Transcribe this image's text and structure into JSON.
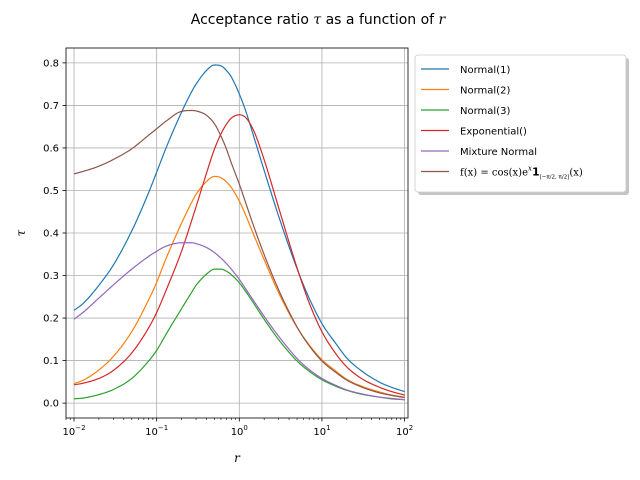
{
  "chart_data": {
    "type": "line",
    "title": "Acceptance ratio τ as a function of r",
    "title_parts": {
      "text": "Acceptance ratio ",
      "tau": "τ",
      "middle": " as a function of ",
      "r": "r"
    },
    "xlabel": "r",
    "ylabel": "τ",
    "xscale": "log",
    "xlim": [
      0.008,
      110
    ],
    "ylim": [
      -0.035,
      0.835
    ],
    "grid": true,
    "legend_position": "outside-top-right",
    "x_ticks": [
      {
        "value": 0.01,
        "base": "10",
        "exp": "−2"
      },
      {
        "value": 0.1,
        "base": "10",
        "exp": "−1"
      },
      {
        "value": 1,
        "base": "10",
        "exp": "0"
      },
      {
        "value": 10,
        "base": "10",
        "exp": "1"
      },
      {
        "value": 100,
        "base": "10",
        "exp": "2"
      }
    ],
    "y_ticks": [
      "0.0",
      "0.1",
      "0.2",
      "0.3",
      "0.4",
      "0.5",
      "0.6",
      "0.7",
      "0.8"
    ],
    "x": [
      0.01,
      0.013,
      0.02,
      0.03,
      0.05,
      0.08,
      0.1,
      0.13,
      0.2,
      0.27,
      0.3,
      0.4,
      0.5,
      0.6,
      0.7,
      0.8,
      1.0,
      1.2,
      1.5,
      2,
      3,
      5,
      7,
      10,
      15,
      20,
      30,
      50,
      70,
      100
    ],
    "series": [
      {
        "name": "Normal(1)",
        "color": "#1f77b4",
        "values": [
          0.218,
          0.235,
          0.277,
          0.325,
          0.405,
          0.495,
          0.543,
          0.6,
          0.684,
          0.735,
          0.75,
          0.782,
          0.795,
          0.793,
          0.782,
          0.767,
          0.727,
          0.686,
          0.626,
          0.547,
          0.439,
          0.316,
          0.247,
          0.187,
          0.138,
          0.106,
          0.076,
          0.049,
          0.037,
          0.027
        ]
      },
      {
        "name": "Normal(2)",
        "color": "#ff7f0e",
        "values": [
          0.046,
          0.054,
          0.078,
          0.11,
          0.168,
          0.243,
          0.284,
          0.34,
          0.423,
          0.475,
          0.491,
          0.521,
          0.533,
          0.53,
          0.52,
          0.507,
          0.475,
          0.441,
          0.395,
          0.337,
          0.259,
          0.178,
          0.137,
          0.102,
          0.074,
          0.056,
          0.04,
          0.026,
          0.019,
          0.014
        ]
      },
      {
        "name": "Normal(3)",
        "color": "#2ca02c",
        "values": [
          0.01,
          0.012,
          0.02,
          0.032,
          0.058,
          0.099,
          0.124,
          0.162,
          0.222,
          0.263,
          0.277,
          0.303,
          0.315,
          0.315,
          0.31,
          0.302,
          0.283,
          0.262,
          0.234,
          0.197,
          0.149,
          0.099,
          0.075,
          0.055,
          0.039,
          0.03,
          0.021,
          0.014,
          0.01,
          0.008
        ]
      },
      {
        "name": "Exponential()",
        "color": "#d62728",
        "values": [
          0.043,
          0.047,
          0.058,
          0.077,
          0.118,
          0.177,
          0.213,
          0.265,
          0.357,
          0.434,
          0.462,
          0.54,
          0.597,
          0.633,
          0.656,
          0.67,
          0.678,
          0.671,
          0.64,
          0.572,
          0.459,
          0.318,
          0.236,
          0.168,
          0.114,
          0.085,
          0.058,
          0.037,
          0.027,
          0.019
        ]
      },
      {
        "name": "Mixture Normal",
        "color": "#9467bd",
        "values": [
          0.197,
          0.214,
          0.247,
          0.278,
          0.315,
          0.345,
          0.357,
          0.369,
          0.377,
          0.377,
          0.375,
          0.366,
          0.354,
          0.341,
          0.328,
          0.315,
          0.291,
          0.268,
          0.24,
          0.204,
          0.157,
          0.105,
          0.079,
          0.058,
          0.041,
          0.031,
          0.022,
          0.014,
          0.011,
          0.008
        ]
      },
      {
        "name_parts": {
          "f": "f(x) = cos(x)e",
          "sup": "x",
          "one": "1",
          "sub": "[−π/2, π/2]",
          "tail": "(x)"
        },
        "color": "#8c564b",
        "values": [
          0.539,
          0.545,
          0.557,
          0.573,
          0.598,
          0.63,
          0.645,
          0.663,
          0.686,
          0.688,
          0.687,
          0.677,
          0.657,
          0.628,
          0.597,
          0.565,
          0.515,
          0.47,
          0.415,
          0.349,
          0.266,
          0.179,
          0.135,
          0.099,
          0.071,
          0.054,
          0.038,
          0.024,
          0.018,
          0.013
        ]
      }
    ]
  }
}
